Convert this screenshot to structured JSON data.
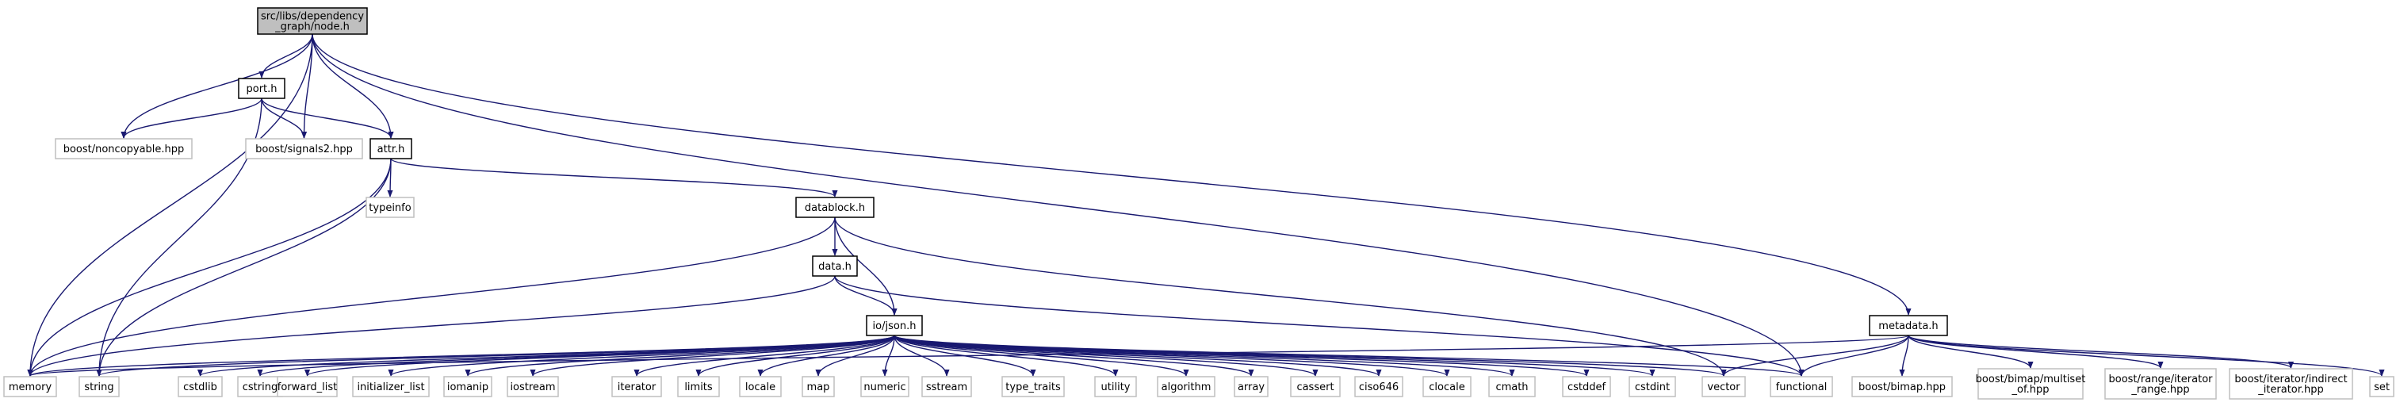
{
  "colors": {
    "edge": "#191970",
    "root_fill": "#bfbfbf",
    "node_border": "#000000",
    "external_border": "#bfbfbf",
    "text": "#000000",
    "background": "#ffffff"
  },
  "nodes": [
    {
      "id": "node_h",
      "lines": [
        "src/libs/dependency",
        "_graph/node.h"
      ],
      "kind": "root"
    },
    {
      "id": "port_h",
      "lines": [
        "port.h"
      ],
      "kind": "local"
    },
    {
      "id": "attr_h",
      "lines": [
        "attr.h"
      ],
      "kind": "local"
    },
    {
      "id": "datablock_h",
      "lines": [
        "datablock.h"
      ],
      "kind": "local"
    },
    {
      "id": "data_h",
      "lines": [
        "data.h"
      ],
      "kind": "local"
    },
    {
      "id": "json_h",
      "lines": [
        "io/json.h"
      ],
      "kind": "local"
    },
    {
      "id": "metadata_h",
      "lines": [
        "metadata.h"
      ],
      "kind": "local"
    },
    {
      "id": "noncopyable",
      "lines": [
        "boost/noncopyable.hpp"
      ],
      "kind": "external"
    },
    {
      "id": "signals2",
      "lines": [
        "boost/signals2.hpp"
      ],
      "kind": "external"
    },
    {
      "id": "typeinfo",
      "lines": [
        "typeinfo"
      ],
      "kind": "external"
    },
    {
      "id": "memory",
      "lines": [
        "memory"
      ],
      "kind": "external"
    },
    {
      "id": "string",
      "lines": [
        "string"
      ],
      "kind": "external"
    },
    {
      "id": "cstdlib",
      "lines": [
        "cstdlib"
      ],
      "kind": "external"
    },
    {
      "id": "cstring",
      "lines": [
        "cstring"
      ],
      "kind": "external"
    },
    {
      "id": "forward_list",
      "lines": [
        "forward_list"
      ],
      "kind": "external"
    },
    {
      "id": "initializer_list",
      "lines": [
        "initializer_list"
      ],
      "kind": "external"
    },
    {
      "id": "iomanip",
      "lines": [
        "iomanip"
      ],
      "kind": "external"
    },
    {
      "id": "iostream",
      "lines": [
        "iostream"
      ],
      "kind": "external"
    },
    {
      "id": "iterator",
      "lines": [
        "iterator"
      ],
      "kind": "external"
    },
    {
      "id": "limits",
      "lines": [
        "limits"
      ],
      "kind": "external"
    },
    {
      "id": "locale",
      "lines": [
        "locale"
      ],
      "kind": "external"
    },
    {
      "id": "map",
      "lines": [
        "map"
      ],
      "kind": "external"
    },
    {
      "id": "numeric",
      "lines": [
        "numeric"
      ],
      "kind": "external"
    },
    {
      "id": "sstream",
      "lines": [
        "sstream"
      ],
      "kind": "external"
    },
    {
      "id": "type_traits",
      "lines": [
        "type_traits"
      ],
      "kind": "external"
    },
    {
      "id": "utility",
      "lines": [
        "utility"
      ],
      "kind": "external"
    },
    {
      "id": "algorithm",
      "lines": [
        "algorithm"
      ],
      "kind": "external"
    },
    {
      "id": "array",
      "lines": [
        "array"
      ],
      "kind": "external"
    },
    {
      "id": "cassert",
      "lines": [
        "cassert"
      ],
      "kind": "external"
    },
    {
      "id": "ciso646",
      "lines": [
        "ciso646"
      ],
      "kind": "external"
    },
    {
      "id": "clocale",
      "lines": [
        "clocale"
      ],
      "kind": "external"
    },
    {
      "id": "cmath",
      "lines": [
        "cmath"
      ],
      "kind": "external"
    },
    {
      "id": "cstddef",
      "lines": [
        "cstddef"
      ],
      "kind": "external"
    },
    {
      "id": "cstdint",
      "lines": [
        "cstdint"
      ],
      "kind": "external"
    },
    {
      "id": "vector",
      "lines": [
        "vector"
      ],
      "kind": "external"
    },
    {
      "id": "functional",
      "lines": [
        "functional"
      ],
      "kind": "external"
    },
    {
      "id": "bimap",
      "lines": [
        "boost/bimap.hpp"
      ],
      "kind": "external"
    },
    {
      "id": "multiset",
      "lines": [
        "boost/bimap/multiset",
        "_of.hpp"
      ],
      "kind": "external"
    },
    {
      "id": "iterator_range",
      "lines": [
        "boost/range/iterator",
        "_range.hpp"
      ],
      "kind": "external"
    },
    {
      "id": "indirect_iterator",
      "lines": [
        "boost/iterator/indirect",
        "_iterator.hpp"
      ],
      "kind": "external"
    },
    {
      "id": "set",
      "lines": [
        "set"
      ],
      "kind": "external"
    }
  ],
  "edges": [
    [
      "node_h",
      "memory"
    ],
    [
      "node_h",
      "port_h"
    ],
    [
      "node_h",
      "noncopyable"
    ],
    [
      "node_h",
      "signals2"
    ],
    [
      "node_h",
      "attr_h"
    ],
    [
      "node_h",
      "functional"
    ],
    [
      "node_h",
      "metadata_h"
    ],
    [
      "port_h",
      "noncopyable"
    ],
    [
      "port_h",
      "signals2"
    ],
    [
      "port_h",
      "attr_h"
    ],
    [
      "port_h",
      "string"
    ],
    [
      "attr_h",
      "memory"
    ],
    [
      "attr_h",
      "string"
    ],
    [
      "attr_h",
      "typeinfo"
    ],
    [
      "attr_h",
      "datablock_h"
    ],
    [
      "datablock_h",
      "memory"
    ],
    [
      "datablock_h",
      "data_h"
    ],
    [
      "datablock_h",
      "json_h"
    ],
    [
      "datablock_h",
      "vector"
    ],
    [
      "data_h",
      "memory"
    ],
    [
      "data_h",
      "json_h"
    ],
    [
      "data_h",
      "functional"
    ],
    [
      "json_h",
      "memory"
    ],
    [
      "json_h",
      "string"
    ],
    [
      "json_h",
      "cstdlib"
    ],
    [
      "json_h",
      "cstring"
    ],
    [
      "json_h",
      "forward_list"
    ],
    [
      "json_h",
      "initializer_list"
    ],
    [
      "json_h",
      "iomanip"
    ],
    [
      "json_h",
      "iostream"
    ],
    [
      "json_h",
      "iterator"
    ],
    [
      "json_h",
      "limits"
    ],
    [
      "json_h",
      "locale"
    ],
    [
      "json_h",
      "map"
    ],
    [
      "json_h",
      "numeric"
    ],
    [
      "json_h",
      "sstream"
    ],
    [
      "json_h",
      "type_traits"
    ],
    [
      "json_h",
      "utility"
    ],
    [
      "json_h",
      "algorithm"
    ],
    [
      "json_h",
      "array"
    ],
    [
      "json_h",
      "cassert"
    ],
    [
      "json_h",
      "ciso646"
    ],
    [
      "json_h",
      "clocale"
    ],
    [
      "json_h",
      "cmath"
    ],
    [
      "json_h",
      "cstddef"
    ],
    [
      "json_h",
      "cstdint"
    ],
    [
      "json_h",
      "vector"
    ],
    [
      "json_h",
      "functional"
    ],
    [
      "metadata_h",
      "memory"
    ],
    [
      "metadata_h",
      "vector"
    ],
    [
      "metadata_h",
      "functional"
    ],
    [
      "metadata_h",
      "bimap"
    ],
    [
      "metadata_h",
      "multiset"
    ],
    [
      "metadata_h",
      "iterator_range"
    ],
    [
      "metadata_h",
      "indirect_iterator"
    ],
    [
      "metadata_h",
      "set"
    ]
  ]
}
